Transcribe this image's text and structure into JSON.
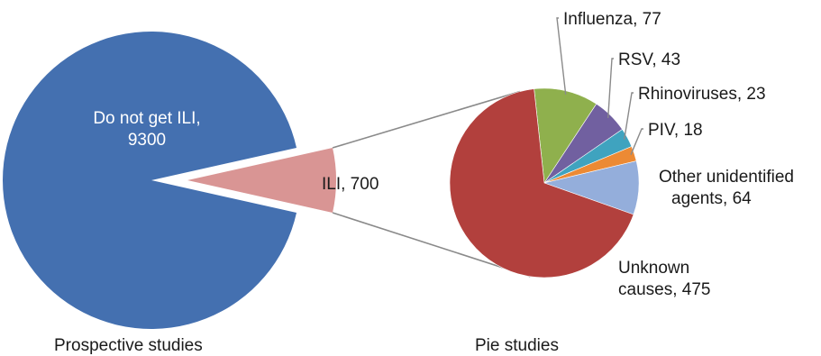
{
  "chart_data": [
    {
      "type": "pie",
      "caption": "Prospective studies",
      "slices": [
        {
          "label": "Do not get ILI",
          "value": 9300,
          "color": "#4470b0",
          "text_lines": [
            "Do not get ILI,",
            "9300"
          ]
        },
        {
          "label": "ILI",
          "value": 700,
          "color": "#d99594",
          "text_lines": [
            "ILI, 700"
          ]
        }
      ]
    },
    {
      "type": "pie",
      "caption": "Pie studies",
      "total_from": "ILI",
      "slices": [
        {
          "label": "Influenza",
          "value": 77,
          "color": "#8fb04d",
          "text_lines": [
            "Influenza, 77"
          ]
        },
        {
          "label": "RSV",
          "value": 43,
          "color": "#7160a0",
          "text_lines": [
            "RSV, 43"
          ]
        },
        {
          "label": "Rhinoviruses",
          "value": 23,
          "color": "#3fa3bf",
          "text_lines": [
            "Rhinoviruses, 23"
          ]
        },
        {
          "label": "PIV",
          "value": 18,
          "color": "#ec8a34",
          "text_lines": [
            "PIV, 18"
          ]
        },
        {
          "label": "Other unidentified agents",
          "value": 64,
          "color": "#94aedb",
          "text_lines": [
            "Other unidentified",
            "agents, 64"
          ]
        },
        {
          "label": "Unknown causes",
          "value": 475,
          "color": "#b2403d",
          "text_lines": [
            "Unknown",
            "causes, 475"
          ]
        }
      ]
    }
  ]
}
